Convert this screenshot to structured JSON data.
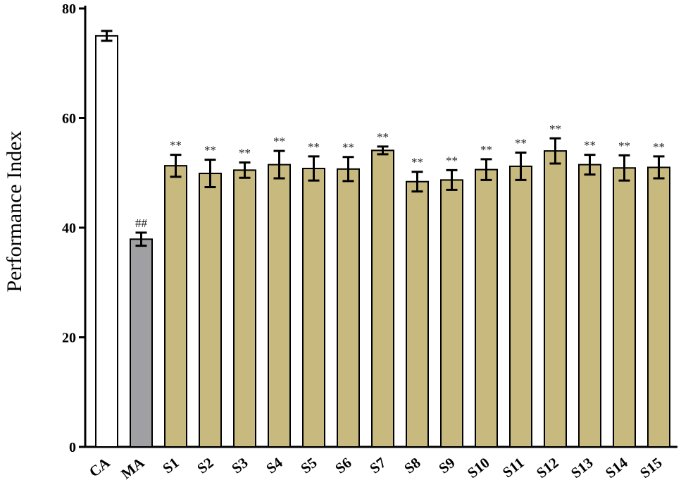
{
  "chart_data": {
    "type": "bar",
    "title": "",
    "xlabel": "",
    "ylabel": "Performance Index",
    "ylim": [
      0,
      80
    ],
    "yticks": [
      0,
      20,
      40,
      60,
      80
    ],
    "grid": false,
    "categories": [
      "CA",
      "MA",
      "S1",
      "S2",
      "S3",
      "S4",
      "S5",
      "S6",
      "S7",
      "S8",
      "S9",
      "S10",
      "S11",
      "S12",
      "S13",
      "S14",
      "S15"
    ],
    "values": [
      75.0,
      37.9,
      51.3,
      49.9,
      50.5,
      51.5,
      50.8,
      50.7,
      54.1,
      48.4,
      48.7,
      50.6,
      51.2,
      54.0,
      51.5,
      50.9,
      51.0
    ],
    "errors": [
      0.9,
      1.2,
      2.0,
      2.5,
      1.4,
      2.5,
      2.2,
      2.2,
      0.7,
      1.8,
      1.8,
      1.9,
      2.5,
      2.3,
      1.8,
      2.3,
      2.0
    ],
    "significance": [
      "",
      "##",
      "**",
      "**",
      "**",
      "**",
      "**",
      "**",
      "**",
      "**",
      "**",
      "**",
      "**",
      "**",
      "**",
      "**",
      "**"
    ],
    "bar_colors": [
      "#ffffff",
      "#a0a0a4",
      "#c8b97e",
      "#c8b97e",
      "#c8b97e",
      "#c8b97e",
      "#c8b97e",
      "#c8b97e",
      "#c8b97e",
      "#c8b97e",
      "#c8b97e",
      "#c8b97e",
      "#c8b97e",
      "#c8b97e",
      "#c8b97e",
      "#c8b97e",
      "#c8b97e"
    ]
  }
}
